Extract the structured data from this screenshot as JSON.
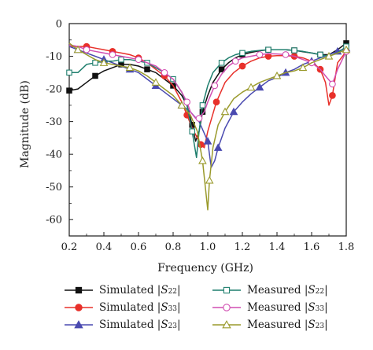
{
  "chart_data": {
    "type": "line",
    "title": "",
    "xlabel": "Frequency (GHz)",
    "ylabel": "Magnitude (dB)",
    "xlim": [
      0.2,
      1.8
    ],
    "ylim": [
      -65,
      0
    ],
    "xticks": [
      "0.2",
      "0.4",
      "0.6",
      "0.8",
      "1.0",
      "1.2",
      "1.4",
      "1.6",
      "1.8"
    ],
    "yticks": [
      "0",
      "-10",
      "-20",
      "-30",
      "-40",
      "-50",
      "-60"
    ],
    "legend_position": "bottom",
    "series": [
      {
        "name": "Simulated |S22|",
        "legend_prefix": "Simulated |",
        "legend_var": "S",
        "legend_sub": "22",
        "legend_suffix": "|",
        "color": "#111111",
        "marker": "square",
        "filled": true,
        "x": [
          0.2,
          0.25,
          0.3,
          0.35,
          0.4,
          0.45,
          0.5,
          0.55,
          0.6,
          0.65,
          0.7,
          0.75,
          0.8,
          0.85,
          0.88,
          0.91,
          0.93,
          0.95,
          0.97,
          1.0,
          1.03,
          1.08,
          1.12,
          1.16,
          1.2,
          1.25,
          1.3,
          1.35,
          1.4,
          1.45,
          1.5,
          1.55,
          1.6,
          1.65,
          1.7,
          1.75,
          1.8
        ],
        "y": [
          -20.5,
          -20,
          -18,
          -16,
          -14.5,
          -13.5,
          -12.5,
          -12.5,
          -13,
          -14,
          -15,
          -17,
          -19,
          -22,
          -25,
          -31,
          -36,
          -33,
          -27,
          -22,
          -18,
          -14,
          -12,
          -10.5,
          -9.5,
          -8.8,
          -8.3,
          -8.0,
          -8.0,
          -8.0,
          -8.2,
          -8.6,
          -9.0,
          -9.5,
          -9.5,
          -8.0,
          -6.0
        ]
      },
      {
        "name": "Simulated |S33|",
        "legend_prefix": "Simulated |",
        "legend_var": "S",
        "legend_sub": "33",
        "legend_suffix": "|",
        "color": "#e8302a",
        "marker": "circle",
        "filled": true,
        "x": [
          0.2,
          0.25,
          0.3,
          0.35,
          0.4,
          0.45,
          0.5,
          0.55,
          0.6,
          0.65,
          0.7,
          0.75,
          0.8,
          0.85,
          0.88,
          0.91,
          0.94,
          0.96,
          0.98,
          1.0,
          1.05,
          1.1,
          1.15,
          1.2,
          1.25,
          1.3,
          1.35,
          1.4,
          1.45,
          1.5,
          1.55,
          1.6,
          1.65,
          1.68,
          1.7,
          1.72,
          1.75,
          1.8
        ],
        "y": [
          -7,
          -7,
          -7,
          -7.5,
          -8,
          -8.5,
          -9,
          -9.5,
          -10.5,
          -12,
          -14,
          -16,
          -19,
          -24,
          -28,
          -32,
          -35,
          -37,
          -38,
          -33,
          -24,
          -18,
          -15,
          -13,
          -11.5,
          -10.5,
          -10,
          -9.8,
          -9.8,
          -10,
          -10.5,
          -11.5,
          -14,
          -18,
          -25,
          -22,
          -12,
          -8.5
        ]
      },
      {
        "name": "Simulated |S23|",
        "legend_prefix": "Simulated |",
        "legend_var": "S",
        "legend_sub": "23",
        "legend_suffix": "|",
        "color": "#4a4ab0",
        "marker": "triangle",
        "filled": true,
        "x": [
          0.2,
          0.25,
          0.3,
          0.35,
          0.4,
          0.45,
          0.5,
          0.55,
          0.6,
          0.65,
          0.7,
          0.75,
          0.8,
          0.85,
          0.9,
          0.95,
          1.0,
          1.02,
          1.04,
          1.06,
          1.08,
          1.1,
          1.15,
          1.2,
          1.25,
          1.3,
          1.35,
          1.4,
          1.45,
          1.5,
          1.55,
          1.6,
          1.65,
          1.7,
          1.75,
          1.8
        ],
        "y": [
          -7,
          -8,
          -9,
          -10,
          -11,
          -12,
          -13,
          -14,
          -15,
          -17,
          -19,
          -21,
          -23,
          -25,
          -27,
          -30,
          -36,
          -44,
          -42,
          -38,
          -35,
          -32,
          -27,
          -24,
          -21.5,
          -19.5,
          -17.5,
          -16.5,
          -15,
          -14,
          -12.5,
          -11.5,
          -10.5,
          -9.5,
          -8.5,
          -7.5
        ]
      },
      {
        "name": "Measured |S22|",
        "legend_prefix": "Measured |",
        "legend_var": "S",
        "legend_sub": "22",
        "legend_suffix": "|",
        "color": "#1f7f6e",
        "marker": "square",
        "filled": false,
        "x": [
          0.2,
          0.25,
          0.3,
          0.35,
          0.4,
          0.45,
          0.5,
          0.55,
          0.6,
          0.65,
          0.7,
          0.75,
          0.8,
          0.85,
          0.88,
          0.91,
          0.935,
          0.95,
          0.97,
          1.0,
          1.03,
          1.08,
          1.12,
          1.16,
          1.2,
          1.25,
          1.3,
          1.35,
          1.4,
          1.45,
          1.5,
          1.55,
          1.6,
          1.65,
          1.7,
          1.75,
          1.8
        ],
        "y": [
          -15,
          -15,
          -12.5,
          -12,
          -11.5,
          -11.5,
          -11,
          -11,
          -11.5,
          -12,
          -13.5,
          -15,
          -17,
          -21,
          -25,
          -33,
          -41,
          -33,
          -25,
          -19,
          -15,
          -12,
          -10.5,
          -9.5,
          -9,
          -8.5,
          -8.2,
          -8.0,
          -8.0,
          -8.0,
          -8.2,
          -8.5,
          -9.0,
          -9.5,
          -10,
          -9,
          -7
        ]
      },
      {
        "name": "Measured |S33|",
        "legend_prefix": "Measured |",
        "legend_var": "S",
        "legend_sub": "33",
        "legend_suffix": "|",
        "color": "#d14fb2",
        "marker": "circle",
        "filled": false,
        "x": [
          0.2,
          0.25,
          0.3,
          0.35,
          0.4,
          0.45,
          0.5,
          0.55,
          0.6,
          0.65,
          0.7,
          0.75,
          0.8,
          0.85,
          0.88,
          0.9,
          0.93,
          0.95,
          0.98,
          1.0,
          1.04,
          1.08,
          1.12,
          1.16,
          1.2,
          1.25,
          1.3,
          1.35,
          1.4,
          1.45,
          1.5,
          1.55,
          1.6,
          1.65,
          1.68,
          1.72,
          1.75,
          1.8
        ],
        "y": [
          -6.5,
          -7,
          -8,
          -8.5,
          -9,
          -9.5,
          -10,
          -10.5,
          -11,
          -12,
          -13,
          -15,
          -17,
          -21,
          -24,
          -27,
          -29,
          -29,
          -27,
          -24,
          -19,
          -15.5,
          -13,
          -11.5,
          -10.5,
          -10,
          -9.5,
          -9.2,
          -9.3,
          -9.5,
          -10,
          -11,
          -12,
          -14,
          -16,
          -18.5,
          -14,
          -8.5
        ]
      },
      {
        "name": "Measured |S23|",
        "legend_prefix": "Measured |",
        "legend_var": "S",
        "legend_sub": "23",
        "legend_suffix": "|",
        "color": "#9a9a2c",
        "marker": "triangle",
        "filled": false,
        "x": [
          0.2,
          0.25,
          0.3,
          0.35,
          0.4,
          0.45,
          0.5,
          0.55,
          0.6,
          0.65,
          0.7,
          0.75,
          0.8,
          0.85,
          0.9,
          0.94,
          0.97,
          0.99,
          1.0,
          1.01,
          1.03,
          1.06,
          1.1,
          1.15,
          1.2,
          1.25,
          1.3,
          1.35,
          1.4,
          1.45,
          1.5,
          1.55,
          1.6,
          1.65,
          1.7,
          1.75,
          1.8
        ],
        "y": [
          -6,
          -8,
          -9.5,
          -11,
          -12,
          -12.5,
          -13,
          -13.5,
          -14.5,
          -16,
          -18,
          -20,
          -22,
          -25,
          -28,
          -33,
          -42,
          -52,
          -57,
          -48,
          -38,
          -31,
          -27,
          -23,
          -21,
          -19.5,
          -18,
          -17,
          -16,
          -15,
          -14.5,
          -13.5,
          -12,
          -11,
          -10,
          -9,
          -8
        ]
      }
    ]
  }
}
